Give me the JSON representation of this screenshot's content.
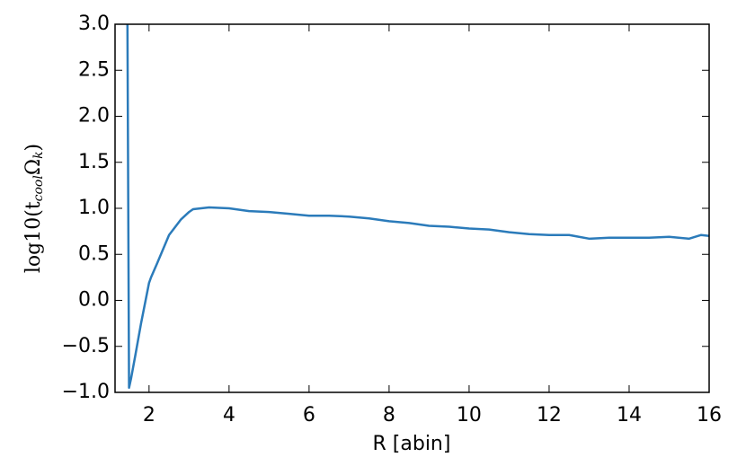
{
  "chart_data": {
    "type": "line",
    "xlabel": "R [abin]",
    "ylabel": "log10(t_{cool}Ω_{k})",
    "xlim": [
      1.15,
      16
    ],
    "ylim": [
      -1.0,
      3.0
    ],
    "xticks": [
      2,
      4,
      6,
      8,
      10,
      12,
      14,
      16
    ],
    "yticks": [
      {
        "value": -1.0,
        "label": "−1.0"
      },
      {
        "value": -0.5,
        "label": "−0.5"
      },
      {
        "value": 0.0,
        "label": "0.0"
      },
      {
        "value": 0.5,
        "label": "0.5"
      },
      {
        "value": 1.0,
        "label": "1.0"
      },
      {
        "value": 1.5,
        "label": "1.5"
      },
      {
        "value": 2.0,
        "label": "2.0"
      },
      {
        "value": 2.5,
        "label": "2.5"
      },
      {
        "value": 3.0,
        "label": "3.0"
      }
    ],
    "grid": false,
    "series": [
      {
        "color": "#2b7bba",
        "x": [
          1.46,
          1.5,
          1.55,
          1.66,
          1.8,
          2.0,
          2.05,
          2.2,
          2.5,
          2.8,
          3.0,
          3.1,
          3.5,
          4.0,
          4.5,
          5.0,
          5.5,
          6.0,
          6.5,
          7.0,
          7.5,
          8.0,
          8.5,
          9.0,
          9.5,
          10.0,
          10.5,
          11.0,
          11.5,
          12.0,
          12.5,
          13.0,
          13.5,
          14.0,
          14.5,
          15.0,
          15.5,
          15.8,
          16.0
        ],
        "values": [
          3.0,
          -0.95,
          -0.85,
          -0.59,
          -0.25,
          0.19,
          0.25,
          0.4,
          0.71,
          0.88,
          0.96,
          0.99,
          1.01,
          1.0,
          0.97,
          0.96,
          0.94,
          0.92,
          0.92,
          0.91,
          0.89,
          0.86,
          0.84,
          0.81,
          0.8,
          0.78,
          0.77,
          0.74,
          0.72,
          0.71,
          0.71,
          0.67,
          0.68,
          0.68,
          0.68,
          0.69,
          0.67,
          0.71,
          0.7
        ]
      }
    ]
  }
}
